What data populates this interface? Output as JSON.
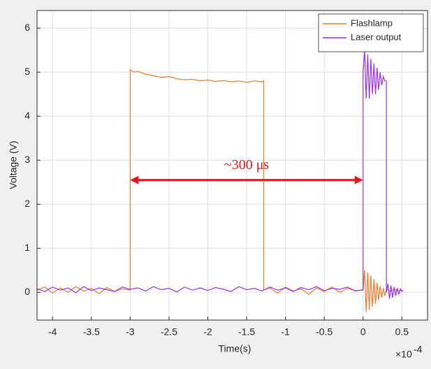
{
  "chart_data": {
    "type": "line",
    "xlabel": "Time(s)",
    "ylabel": "Voltage (V)",
    "x_exponent_base": "×10",
    "x_exponent_power": "-4",
    "xlim": [
      -4.2,
      0.83
    ],
    "ylim": [
      -0.63,
      6.4
    ],
    "xticks": [
      -4,
      -3.5,
      -3,
      -2.5,
      -2,
      -1.5,
      -1,
      -0.5,
      0,
      0.5
    ],
    "yticks": [
      0,
      1,
      2,
      3,
      4,
      5,
      6
    ],
    "grid": true,
    "legend": "upper right",
    "annotation": {
      "text": "~300 μs",
      "x_start": -3,
      "x_end": 0,
      "y": 2.55,
      "color": "#e8141c"
    },
    "series": [
      {
        "name": "Flashlamp",
        "color": "#f07a2a",
        "x": [
          -4.2,
          -4.1,
          -4.0,
          -3.9,
          -3.8,
          -3.7,
          -3.6,
          -3.5,
          -3.4,
          -3.3,
          -3.2,
          -3.1,
          -3.0,
          -3.0,
          -2.95,
          -2.9,
          -2.8,
          -2.7,
          -2.6,
          -2.5,
          -2.4,
          -2.3,
          -2.2,
          -2.1,
          -2.0,
          -1.9,
          -1.8,
          -1.7,
          -1.6,
          -1.5,
          -1.4,
          -1.3,
          -1.28,
          -1.28,
          -1.2,
          -1.1,
          -1.0,
          -0.9,
          -0.8,
          -0.7,
          -0.6,
          -0.5,
          -0.4,
          -0.3,
          -0.2,
          -0.1,
          0.0,
          0.02,
          0.04,
          0.06,
          0.08,
          0.1,
          0.12,
          0.14,
          0.16,
          0.18,
          0.2,
          0.22,
          0.24,
          0.26,
          0.28,
          0.3,
          0.35,
          0.4,
          0.45,
          0.5
        ],
        "values": [
          0.05,
          0.12,
          -0.02,
          0.1,
          0.0,
          0.13,
          0.03,
          0.09,
          -0.03,
          0.11,
          0.02,
          0.08,
          0.05,
          5.05,
          5.0,
          5.02,
          4.95,
          4.92,
          4.88,
          4.9,
          4.85,
          4.83,
          4.84,
          4.8,
          4.82,
          4.79,
          4.81,
          4.78,
          4.8,
          4.77,
          4.8,
          4.78,
          4.8,
          0.05,
          0.1,
          -0.02,
          0.12,
          0.03,
          0.08,
          -0.04,
          0.1,
          0.02,
          0.12,
          0.0,
          0.09,
          0.04,
          0.05,
          0.5,
          -0.45,
          0.45,
          -0.4,
          0.38,
          -0.33,
          0.3,
          -0.26,
          0.22,
          -0.18,
          0.15,
          -0.12,
          0.1,
          -0.08,
          0.08,
          0.02,
          0.07,
          0.03,
          0.05
        ]
      },
      {
        "name": "Laser output",
        "color": "#9a2ff0",
        "x": [
          -4.2,
          -4.1,
          -4.0,
          -3.9,
          -3.8,
          -3.7,
          -3.6,
          -3.5,
          -3.4,
          -3.3,
          -3.2,
          -3.1,
          -3.0,
          -2.9,
          -2.8,
          -2.7,
          -2.6,
          -2.5,
          -2.4,
          -2.3,
          -2.2,
          -2.1,
          -2.0,
          -1.9,
          -1.8,
          -1.7,
          -1.6,
          -1.5,
          -1.4,
          -1.3,
          -1.2,
          -1.1,
          -1.0,
          -0.9,
          -0.8,
          -0.7,
          -0.6,
          -0.5,
          -0.4,
          -0.3,
          -0.2,
          -0.1,
          0.0,
          0.0,
          0.02,
          0.04,
          0.06,
          0.08,
          0.1,
          0.12,
          0.14,
          0.16,
          0.18,
          0.2,
          0.22,
          0.24,
          0.26,
          0.28,
          0.3,
          0.3,
          0.32,
          0.34,
          0.36,
          0.38,
          0.4,
          0.42,
          0.44,
          0.46,
          0.48,
          0.5,
          0.52
        ],
        "values": [
          0.08,
          0.02,
          0.12,
          0.05,
          0.1,
          -0.01,
          0.13,
          0.04,
          0.1,
          0.06,
          0.02,
          0.12,
          0.07,
          0.1,
          0.03,
          0.13,
          0.06,
          0.09,
          0.01,
          0.12,
          0.05,
          0.1,
          0.04,
          0.11,
          0.07,
          0.02,
          0.13,
          0.06,
          0.09,
          0.03,
          0.12,
          0.05,
          0.1,
          0.02,
          0.11,
          0.06,
          0.13,
          0.04,
          0.09,
          0.07,
          0.12,
          0.03,
          0.06,
          5.0,
          5.5,
          4.4,
          5.4,
          4.4,
          5.3,
          4.5,
          5.2,
          4.5,
          5.1,
          4.6,
          5.0,
          4.7,
          4.9,
          4.8,
          4.8,
          0.0,
          0.2,
          -0.15,
          0.15,
          -0.12,
          0.12,
          -0.08,
          0.1,
          -0.05,
          0.08,
          0.02,
          0.05
        ]
      }
    ]
  }
}
